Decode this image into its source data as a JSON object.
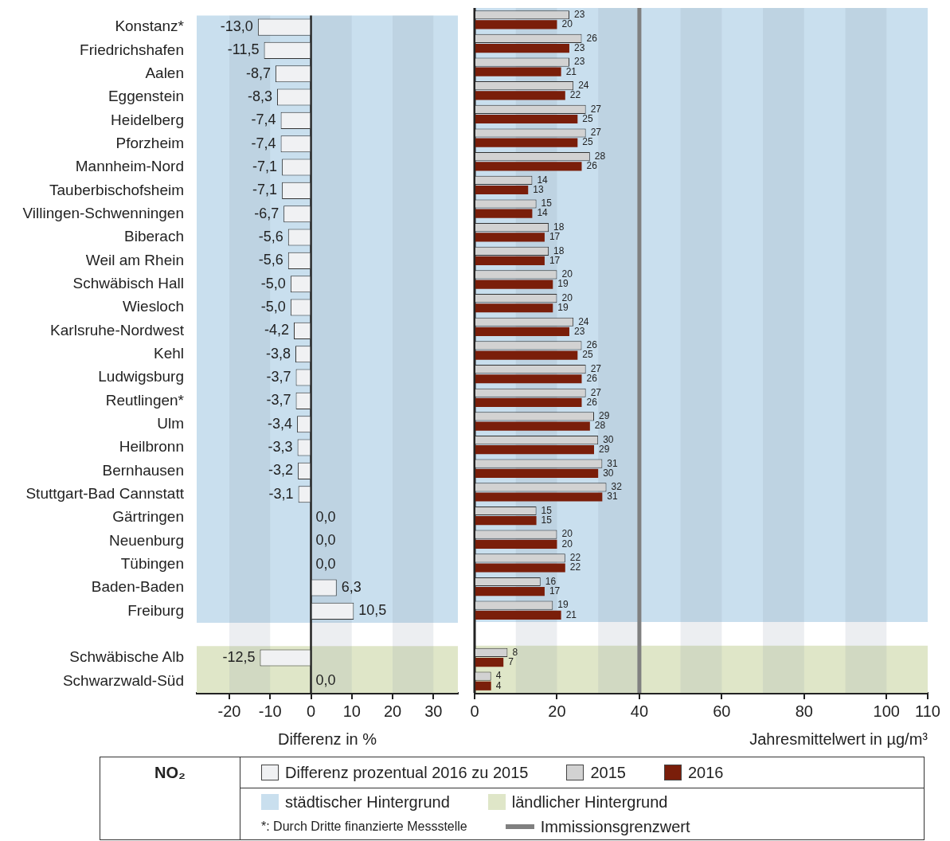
{
  "chart_data": [
    {
      "type": "bar",
      "orientation": "horizontal",
      "xlabel": "Differenz in %",
      "categories": [
        "Konstanz*",
        "Friedrichshafen",
        "Aalen",
        "Eggenstein",
        "Heidelberg",
        "Pforzheim",
        "Mannheim-Nord",
        "Tauberbischofsheim",
        "Villingen-Schwenningen",
        "Biberach",
        "Weil am Rhein",
        "Schwäbisch Hall",
        "Wiesloch",
        "Karlsruhe-Nordwest",
        "Kehl",
        "Ludwigsburg",
        "Reutlingen*",
        "Ulm",
        "Heilbronn",
        "Bernhausen",
        "Stuttgart-Bad Cannstatt",
        "Gärtringen",
        "Neuenburg",
        "Tübingen",
        "Baden-Baden",
        "Freiburg",
        null,
        "Schwäbische Alb",
        "Schwarzwald-Süd"
      ],
      "series": [
        {
          "name": "Differenz prozentual 2016 zu 2015",
          "color": "#f0f1f3",
          "values": [
            -13.0,
            -11.5,
            -8.7,
            -8.3,
            -7.4,
            -7.4,
            -7.1,
            -7.1,
            -6.7,
            -5.6,
            -5.6,
            -5.0,
            -5.0,
            -4.2,
            -3.8,
            -3.7,
            -3.7,
            -3.4,
            -3.3,
            -3.2,
            -3.1,
            0.0,
            0.0,
            0.0,
            6.3,
            10.5,
            null,
            -12.5,
            0.0
          ],
          "value_labels": [
            "-13,0",
            "-11,5",
            "-8,7",
            "-8,3",
            "-7,4",
            "-7,4",
            "-7,1",
            "-7,1",
            "-6,7",
            "-5,6",
            "-5,6",
            "-5,0",
            "-5,0",
            "-4,2",
            "-3,8",
            "-3,7",
            "-3,7",
            "-3,4",
            "-3,3",
            "-3,2",
            "-3,1",
            "0,0",
            "0,0",
            "0,0",
            "6,3",
            "10,5",
            null,
            "-12,5",
            "0,0"
          ]
        }
      ],
      "xlim": [
        -28,
        36
      ],
      "xticks": [
        -20,
        -10,
        0,
        10,
        20,
        30
      ],
      "bands": [
        {
          "axis": "y",
          "from": "Konstanz*",
          "to": "Freiburg",
          "color": "#c9dfee"
        },
        {
          "axis": "y",
          "from": "Schwäbische Alb",
          "to": "Schwarzwald-Süd",
          "color": "#dfe6c8"
        },
        {
          "axis": "x",
          "from": -20,
          "to": -10,
          "color": "#8a98a8"
        },
        {
          "axis": "x",
          "from": 0,
          "to": 10,
          "color": "#8a98a8"
        },
        {
          "axis": "x",
          "from": 20,
          "to": 30,
          "color": "#8a98a8"
        }
      ],
      "legend": "bottom"
    },
    {
      "type": "bar",
      "orientation": "horizontal",
      "xlabel": "Jahresmittelwert in µg/m³",
      "legend_title": "NO₂",
      "tick_labels": "x",
      "categories": [
        "Konstanz*",
        "Friedrichshafen",
        "Aalen",
        "Eggenstein",
        "Heidelberg",
        "Pforzheim",
        "Mannheim-Nord",
        "Tauberbischofsheim",
        "Villingen-Schwenningen",
        "Biberach",
        "Weil am Rhein",
        "Schwäbisch Hall",
        "Wiesloch",
        "Karlsruhe-Nordwest",
        "Kehl",
        "Ludwigsburg",
        "Reutlingen*",
        "Ulm",
        "Heilbronn",
        "Bernhausen",
        "Stuttgart-Bad Cannstatt",
        "Gärtringen",
        "Neuenburg",
        "Tübingen",
        "Baden-Baden",
        "Freiburg",
        null,
        "Schwäbische Alb",
        "Schwarzwald-Süd"
      ],
      "series": [
        {
          "name": "2015",
          "color": "#d2d2d2",
          "values": [
            23,
            26,
            23,
            24,
            27,
            27,
            28,
            14,
            15,
            18,
            18,
            20,
            20,
            24,
            26,
            27,
            27,
            29,
            30,
            31,
            32,
            15,
            20,
            22,
            16,
            19,
            null,
            8,
            4
          ]
        },
        {
          "name": "2016",
          "color": "#7a1e0a",
          "values": [
            20,
            23,
            21,
            22,
            25,
            25,
            26,
            13,
            14,
            17,
            17,
            19,
            19,
            23,
            25,
            26,
            26,
            28,
            29,
            30,
            31,
            15,
            20,
            22,
            17,
            21,
            null,
            7,
            4
          ]
        }
      ],
      "data_labels": true,
      "xlim": [
        0,
        110
      ],
      "xticks": [
        0,
        20,
        40,
        60,
        80,
        100,
        110
      ],
      "ref_lines": [
        {
          "axis": "x",
          "value": 40,
          "label": "Immissionsgrenzwert",
          "color": "#808080"
        }
      ],
      "bands": [
        {
          "axis": "y",
          "from": "Konstanz*",
          "to": "Freiburg",
          "label": "städtischer Hintergrund",
          "color": "#c9dfee"
        },
        {
          "axis": "y",
          "from": "Schwäbische Alb",
          "to": "Schwarzwald-Süd",
          "label": "ländlicher Hintergrund",
          "color": "#dfe6c8"
        },
        {
          "axis": "x",
          "from": 10,
          "to": 20,
          "color": "#8a98a8"
        },
        {
          "axis": "x",
          "from": 30,
          "to": 40,
          "color": "#8a98a8"
        },
        {
          "axis": "x",
          "from": 50,
          "to": 60,
          "color": "#8a98a8"
        },
        {
          "axis": "x",
          "from": 70,
          "to": 80,
          "color": "#8a98a8"
        },
        {
          "axis": "x",
          "from": 90,
          "to": 100,
          "color": "#8a98a8"
        }
      ],
      "annotations": [
        "*: Durch Dritte finanzierte Messstelle"
      ],
      "legend": "bottom"
    }
  ]
}
